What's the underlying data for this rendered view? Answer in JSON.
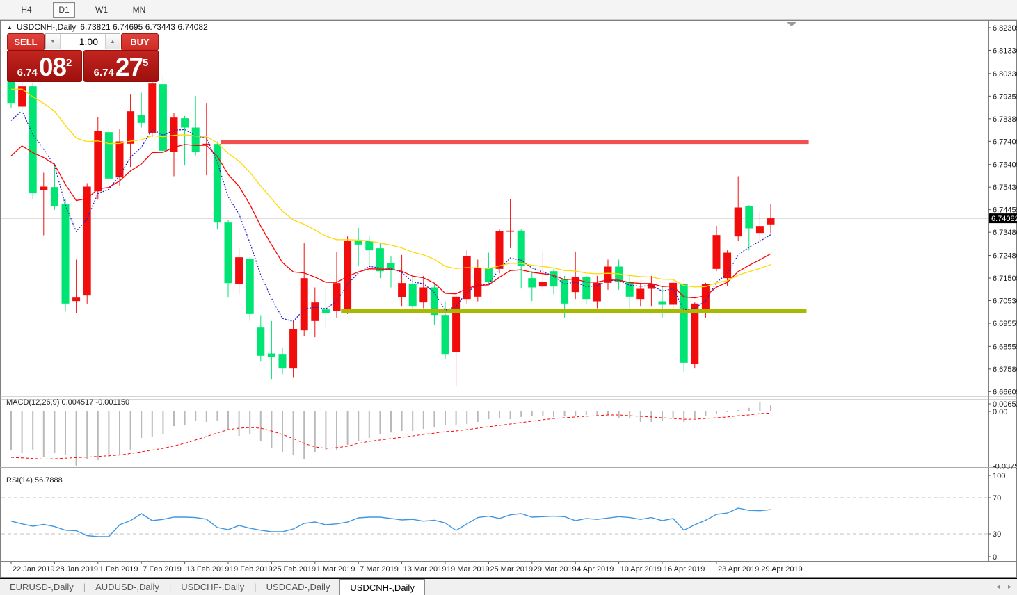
{
  "toolbar": {
    "buttons": [
      {
        "label": "H4",
        "active": false
      },
      {
        "label": "D1",
        "active": true
      },
      {
        "label": "W1",
        "active": false
      },
      {
        "label": "MN",
        "active": false
      }
    ]
  },
  "chart_header": {
    "collapse_icon": "▲",
    "symbol": "USDCNH-,Daily",
    "ohlc_text": "6.73821 6.74695 6.73443 6.74082"
  },
  "trade_panel": {
    "sell_label": "SELL",
    "buy_label": "BUY",
    "volume": "1.00",
    "spin_down_icon": "▼",
    "spin_up_icon": "▲",
    "sell_price": {
      "small": "6.74",
      "big": "08",
      "sup": "2"
    },
    "buy_price": {
      "small": "6.74",
      "big": "27",
      "sup": "5"
    }
  },
  "price_axis": {
    "labels": [
      "6.82305",
      "6.81330",
      "6.80330",
      "6.79355",
      "6.78380",
      "6.77405",
      "6.76405",
      "6.75430",
      "6.74455",
      "6.73480",
      "6.72480",
      "6.71505",
      "6.70530",
      "6.69555",
      "6.68555",
      "6.67580",
      "6.66605"
    ],
    "values": [
      6.82305,
      6.8133,
      6.8033,
      6.79355,
      6.7838,
      6.77405,
      6.76405,
      6.7543,
      6.74455,
      6.7348,
      6.7248,
      6.71505,
      6.7053,
      6.69555,
      6.68555,
      6.6758,
      6.66605
    ],
    "current_tag": {
      "text": "6.74082",
      "value": 6.74082
    }
  },
  "date_axis": {
    "ticks": [
      {
        "label": "22 Jan 2019",
        "index": 0
      },
      {
        "label": "28 Jan 2019",
        "index": 4
      },
      {
        "label": "1 Feb 2019",
        "index": 8
      },
      {
        "label": "7 Feb 2019",
        "index": 12
      },
      {
        "label": "13 Feb 2019",
        "index": 16
      },
      {
        "label": "19 Feb 2019",
        "index": 20
      },
      {
        "label": "25 Feb 2019",
        "index": 24
      },
      {
        "label": "1 Mar 2019",
        "index": 28
      },
      {
        "label": "7 Mar 2019",
        "index": 32
      },
      {
        "label": "13 Mar 2019",
        "index": 36
      },
      {
        "label": "19 Mar 2019",
        "index": 40
      },
      {
        "label": "25 Mar 2019",
        "index": 44
      },
      {
        "label": "29 Mar 2019",
        "index": 48
      },
      {
        "label": "4 Apr 2019",
        "index": 52
      },
      {
        "label": "10 Apr 2019",
        "index": 56
      },
      {
        "label": "16 Apr 2019",
        "index": 60
      },
      {
        "label": "23 Apr 2019",
        "index": 65
      },
      {
        "label": "29 Apr 2019",
        "index": 69
      }
    ]
  },
  "panes": {
    "macd": {
      "label": "MACD(12,26,9) 0.004517 -0.001150",
      "axis_labels": [
        "0.006522",
        "0.00",
        "-0.037575"
      ],
      "axis_values": [
        0.006522,
        0,
        -0.037575
      ]
    },
    "rsi": {
      "label": "RSI(14) 56.7888",
      "axis_labels": [
        "100",
        "70",
        "30",
        "0"
      ],
      "axis_values": [
        100,
        70,
        30,
        0
      ]
    }
  },
  "tabs": {
    "items": [
      {
        "label": "EURUSD-,Daily",
        "active": false
      },
      {
        "label": "AUDUSD-,Daily",
        "active": false
      },
      {
        "label": "USDCHF-,Daily",
        "active": false
      },
      {
        "label": "USDCAD-,Daily",
        "active": false
      },
      {
        "label": "USDCNH-,Daily",
        "active": true
      }
    ],
    "scroll_left_icon": "◂",
    "scroll_right_icon": "▸"
  },
  "colors": {
    "bull": "#f20d0d",
    "bear": "#00e473",
    "ma_fast": "#2424c8",
    "ma_mid": "#ff0000",
    "ma_slow": "#ffd900",
    "resistance": "#f25050",
    "support": "#a6bb00",
    "macd_hist": "#b9b9b9",
    "macd_signal": "#ff0000",
    "rsi_line": "#3f96e0",
    "level_dashed": "#c0c0c0",
    "price_line": "#c9c9c9",
    "tag_bg": "#000000",
    "tag_text": "#ffffff",
    "axis_text": "#1a1a1a",
    "shift_marker": "#9a9a9a"
  },
  "chart_data": {
    "type": "candlestick",
    "title": "USDCNH-,Daily",
    "symbol": "USDCNH-",
    "timeframe": "Daily",
    "current_ohlc": {
      "open": 6.73821,
      "high": 6.74695,
      "low": 6.73443,
      "close": 6.74082
    },
    "price_range": [
      6.66605,
      6.82305
    ],
    "x_range_dates": [
      "22 Jan 2019",
      "30 Apr 2019"
    ],
    "ohlc": [
      [
        6.8008,
        6.803,
        6.7885,
        6.7906
      ],
      [
        6.789,
        6.8002,
        6.7875,
        6.7978
      ],
      [
        6.7978,
        6.7992,
        6.749,
        6.7516
      ],
      [
        6.753,
        6.7605,
        6.7335,
        6.7545
      ],
      [
        6.7543,
        6.7645,
        6.7445,
        6.746
      ],
      [
        6.747,
        6.7493,
        6.7006,
        6.704
      ],
      [
        6.7051,
        6.723,
        6.7,
        6.7066
      ],
      [
        6.7075,
        6.756,
        6.704,
        6.7545
      ],
      [
        6.7525,
        6.7846,
        6.7489,
        6.7786
      ],
      [
        6.778,
        6.7795,
        6.756,
        6.758
      ],
      [
        6.7585,
        6.7795,
        6.755,
        6.774
      ],
      [
        6.773,
        6.7945,
        6.763,
        6.787
      ],
      [
        6.7855,
        6.795,
        6.78,
        6.782
      ],
      [
        6.7775,
        6.8025,
        6.776,
        6.799
      ],
      [
        6.7987,
        6.8025,
        6.769,
        6.77
      ],
      [
        6.7695,
        6.7864,
        6.759,
        6.7843
      ],
      [
        6.784,
        6.785,
        6.7636,
        6.78
      ],
      [
        6.78,
        6.7936,
        6.768,
        6.7695
      ],
      [
        6.7726,
        6.7906,
        6.7594,
        6.773
      ],
      [
        6.7729,
        6.774,
        6.736,
        6.739
      ],
      [
        6.739,
        6.74,
        6.7066,
        6.7129
      ],
      [
        6.7126,
        6.728,
        6.708,
        6.724
      ],
      [
        6.7234,
        6.724,
        6.6966,
        6.6995
      ],
      [
        6.6937,
        6.699,
        6.679,
        6.6815
      ],
      [
        6.6825,
        6.6965,
        6.6715,
        6.681
      ],
      [
        6.682,
        6.685,
        6.6735,
        6.676
      ],
      [
        6.676,
        6.697,
        6.672,
        6.693
      ],
      [
        6.6925,
        6.73,
        6.69,
        6.715
      ],
      [
        6.6965,
        6.711,
        6.6895,
        6.7045
      ],
      [
        6.7015,
        6.711,
        6.693,
        6.7
      ],
      [
        6.7009,
        6.7264,
        6.698,
        6.7129
      ],
      [
        6.701,
        6.733,
        6.6995,
        6.731
      ],
      [
        6.731,
        6.7367,
        6.7201,
        6.7295
      ],
      [
        6.731,
        6.733,
        6.7201,
        6.727
      ],
      [
        6.7279,
        6.73,
        6.715,
        6.718
      ],
      [
        6.7216,
        6.7246,
        6.711,
        6.7186
      ],
      [
        6.7069,
        6.725,
        6.703,
        6.7129
      ],
      [
        6.7126,
        6.716,
        6.701,
        6.703
      ],
      [
        6.7045,
        6.716,
        6.702,
        6.711
      ],
      [
        6.711,
        6.713,
        6.695,
        6.6991
      ],
      [
        6.6991,
        6.705,
        6.68,
        6.682
      ],
      [
        6.683,
        6.708,
        6.6685,
        6.707
      ],
      [
        6.706,
        6.727,
        6.704,
        6.7246
      ],
      [
        6.707,
        6.723,
        6.705,
        6.7195
      ],
      [
        6.7195,
        6.726,
        6.713,
        6.7135
      ],
      [
        6.719,
        6.736,
        6.717,
        6.7354
      ],
      [
        6.735,
        6.749,
        6.728,
        6.7355
      ],
      [
        6.7355,
        6.736,
        6.7105,
        6.7204
      ],
      [
        6.715,
        6.718,
        6.7051,
        6.711
      ],
      [
        6.7114,
        6.7265,
        6.71,
        6.7135
      ],
      [
        6.718,
        6.719,
        6.708,
        6.7114
      ],
      [
        6.7145,
        6.716,
        6.698,
        6.704
      ],
      [
        6.709,
        6.7265,
        6.706,
        6.7156
      ],
      [
        6.7156,
        6.716,
        6.704,
        6.706
      ],
      [
        6.705,
        6.716,
        6.702,
        6.713
      ],
      [
        6.713,
        6.723,
        6.71,
        6.72
      ],
      [
        6.72,
        6.723,
        6.71,
        6.7135
      ],
      [
        6.7135,
        6.716,
        6.702,
        6.707
      ],
      [
        6.706,
        6.713,
        6.703,
        6.7104
      ],
      [
        6.7104,
        6.716,
        6.703,
        6.7126
      ],
      [
        6.705,
        6.7114,
        6.698,
        6.7035
      ],
      [
        6.7035,
        6.714,
        6.701,
        6.713
      ],
      [
        6.7126,
        6.713,
        6.6745,
        6.6785
      ],
      [
        6.678,
        6.7045,
        6.676,
        6.704
      ],
      [
        6.701,
        6.713,
        6.698,
        6.7126
      ],
      [
        6.719,
        6.7376,
        6.718,
        6.7336
      ],
      [
        6.715,
        6.727,
        6.7115,
        6.726
      ],
      [
        6.733,
        6.759,
        6.731,
        6.7455
      ],
      [
        6.746,
        6.7465,
        6.727,
        6.7365
      ],
      [
        6.7345,
        6.7436,
        6.731,
        6.7375
      ],
      [
        6.73821,
        6.74695,
        6.73443,
        6.74082
      ]
    ],
    "moving_averages": [
      {
        "name": "ma-fast-blue",
        "period": 6,
        "seed": 6.78,
        "style": "dotted"
      },
      {
        "name": "ma-mid-red",
        "period": 13,
        "seed": 6.764,
        "style": "solid"
      },
      {
        "name": "ma-slow-yellow",
        "period": 26,
        "seed": 6.797,
        "style": "solid"
      }
    ],
    "hlines": [
      {
        "name": "resistance-line",
        "value": 6.7738,
        "from_index": 19.3,
        "to_index": 73.5,
        "width": 6
      },
      {
        "name": "support-line",
        "value": 6.7008,
        "from_index": 30.4,
        "to_index": 73.3,
        "width": 6
      }
    ],
    "current_price_line": 6.74082,
    "macd": {
      "params": [
        12,
        26,
        9
      ],
      "main_value": 0.004517,
      "signal_value": -0.00115,
      "range": [
        -0.037575,
        0.006522
      ],
      "histogram": [
        -0.0268,
        -0.0288,
        -0.0263,
        -0.0316,
        -0.0288,
        -0.0302,
        -0.0376,
        -0.0326,
        -0.0335,
        -0.0316,
        -0.0302,
        -0.0263,
        -0.0182,
        -0.0172,
        -0.0158,
        -0.0101,
        -0.0096,
        -0.0067,
        -0.0072,
        -0.0062,
        -0.0125,
        -0.0168,
        -0.0158,
        -0.0206,
        -0.0254,
        -0.0278,
        -0.0302,
        -0.0326,
        -0.0278,
        -0.0263,
        -0.0263,
        -0.023,
        -0.0206,
        -0.0182,
        -0.0155,
        -0.0145,
        -0.0134,
        -0.0134,
        -0.012,
        -0.011,
        -0.0096,
        -0.009,
        -0.0086,
        -0.0072,
        -0.0053,
        -0.0048,
        -0.0053,
        -0.0038,
        -0.0029,
        -0.0029,
        -0.0038,
        -0.0029,
        -0.0029,
        -0.0024,
        -0.0029,
        -0.0024,
        -0.0048,
        -0.0048,
        -0.0072,
        -0.0072,
        -0.0062,
        -0.0048,
        -0.0072,
        -0.0048,
        -0.0029,
        -0.0014,
        -0.0005,
        0.001,
        0.0025,
        0.0065,
        0.0045
      ],
      "signal": [
        -0.0316,
        -0.032,
        -0.0324,
        -0.0328,
        -0.0326,
        -0.0322,
        -0.0318,
        -0.0314,
        -0.031,
        -0.0305,
        -0.03,
        -0.029,
        -0.0278,
        -0.0266,
        -0.0254,
        -0.0237,
        -0.022,
        -0.0196,
        -0.0172,
        -0.0148,
        -0.0125,
        -0.0115,
        -0.011,
        -0.0115,
        -0.0134,
        -0.0158,
        -0.0187,
        -0.022,
        -0.0244,
        -0.0254,
        -0.0249,
        -0.0239,
        -0.022,
        -0.0206,
        -0.0196,
        -0.0187,
        -0.0177,
        -0.0168,
        -0.0158,
        -0.0149,
        -0.0139,
        -0.0134,
        -0.0125,
        -0.0115,
        -0.0105,
        -0.0096,
        -0.0086,
        -0.0076,
        -0.0067,
        -0.0057,
        -0.0048,
        -0.0043,
        -0.0038,
        -0.0033,
        -0.0029,
        -0.0024,
        -0.0024,
        -0.0029,
        -0.0033,
        -0.0038,
        -0.0043,
        -0.0048,
        -0.0053,
        -0.0053,
        -0.0048,
        -0.0043,
        -0.0038,
        -0.0029,
        -0.0024,
        -0.0014,
        -0.00115
      ]
    },
    "rsi": {
      "period": 14,
      "current": 56.7888,
      "levels": [
        70,
        30
      ],
      "values": [
        44,
        41,
        38.5,
        40.5,
        38,
        34,
        33.5,
        28,
        27,
        26.9,
        40,
        44.6,
        52.3,
        44.6,
        46,
        48.5,
        48.5,
        48,
        46.2,
        37,
        34.6,
        39.2,
        36.2,
        34,
        32.3,
        32.3,
        35.4,
        41.5,
        43.1,
        40,
        41,
        43,
        47.7,
        48.5,
        48.5,
        47,
        45.4,
        46,
        44,
        45,
        42,
        33.8,
        41,
        48,
        49.5,
        47,
        51,
        52.3,
        48.5,
        49,
        49.5,
        49,
        44.6,
        47,
        46,
        47.5,
        49,
        48,
        46,
        48,
        44.6,
        47,
        34,
        40,
        45,
        51.5,
        53,
        58.5,
        56,
        55.6,
        56.7888
      ]
    }
  }
}
